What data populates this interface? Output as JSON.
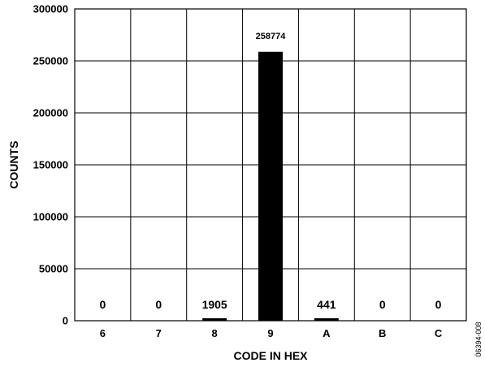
{
  "chart_data": {
    "type": "bar",
    "categories": [
      "6",
      "7",
      "8",
      "9",
      "A",
      "B",
      "C"
    ],
    "values": [
      0,
      0,
      1905,
      258774,
      441,
      0,
      0
    ],
    "data_labels": [
      "0",
      "0",
      "1905",
      "258774",
      "441",
      "0",
      "0"
    ],
    "xlabel": "CODE IN HEX",
    "ylabel": "COUNTS",
    "ylim": [
      0,
      300000
    ],
    "yticks": [
      0,
      50000,
      100000,
      150000,
      200000,
      250000,
      300000
    ],
    "ytick_labels": [
      "0",
      "50000",
      "100000",
      "150000",
      "200000",
      "250000",
      "300000"
    ],
    "grid": true,
    "bar_color": "#000000"
  },
  "figure_id": "06394-008"
}
